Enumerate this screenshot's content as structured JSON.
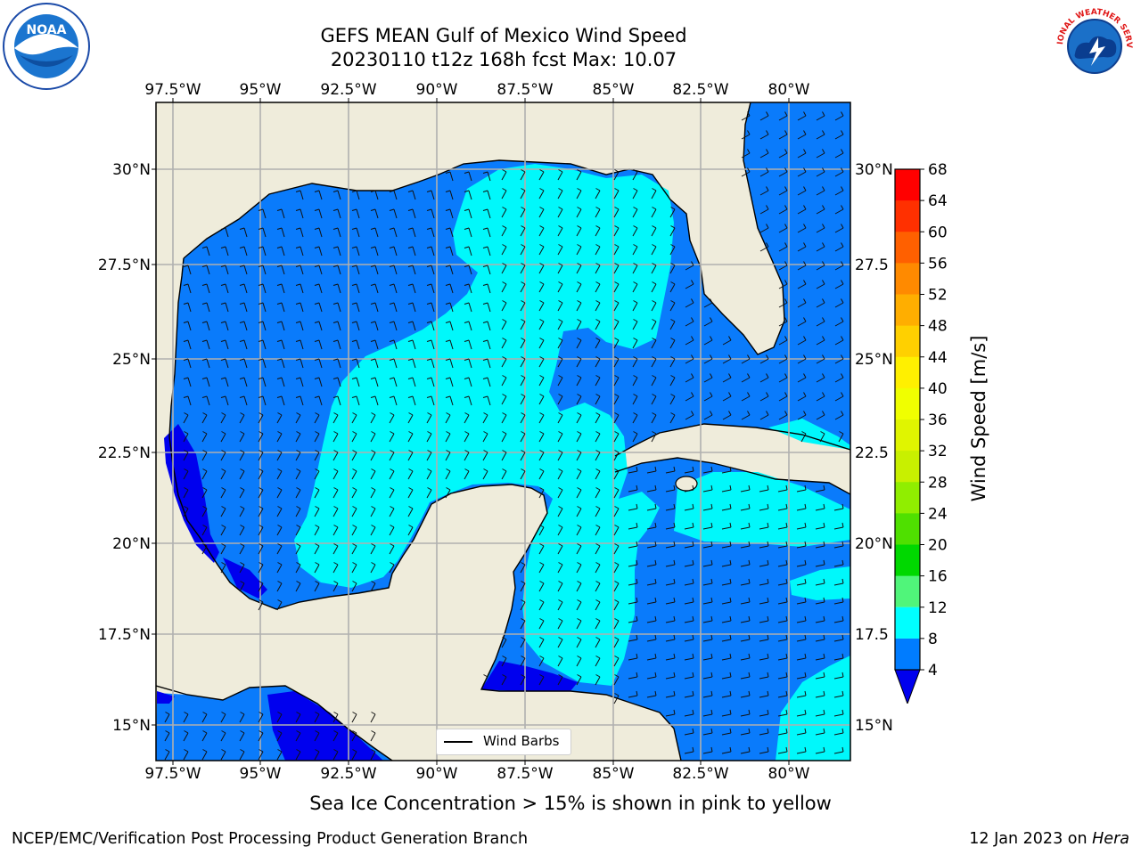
{
  "title_line1": "GEFS MEAN Gulf of Mexico Wind Speed",
  "title_line2": "20230110 t12z 168h fcst   Max: 10.07",
  "lon_labels": [
    "97.5°W",
    "95°W",
    "92.5°W",
    "90°W",
    "87.5°W",
    "85°W",
    "82.5°W",
    "80°W"
  ],
  "lat_labels": [
    "30°N",
    "27.5°N",
    "25°N",
    "22.5°N",
    "20°N",
    "17.5°N",
    "15°N"
  ],
  "lat_labels_right": [
    "30°N",
    "27.5",
    "25°N",
    "22.5",
    "20°N",
    "17.5",
    "15°N"
  ],
  "legend": {
    "wind_barbs_label": "Wind Barbs"
  },
  "colorbar": {
    "label": "Wind Speed [m/s]",
    "ticks": [
      "68",
      "64",
      "60",
      "56",
      "52",
      "48",
      "44",
      "40",
      "36",
      "32",
      "28",
      "24",
      "20",
      "16",
      "12",
      "8",
      "4"
    ],
    "colors_top_to_bottom": [
      "#ff0000",
      "#ff3000",
      "#ff6000",
      "#ff8a00",
      "#ffae00",
      "#ffd000",
      "#fff000",
      "#f0ff00",
      "#e0f500",
      "#c8f000",
      "#90ee00",
      "#4fe000",
      "#00d800",
      "#50f57a",
      "#a0fff8",
      "#50fffa",
      "#00ffff",
      "#007cff"
    ],
    "extend_color": "#0000ee"
  },
  "colors": {
    "land": "#efecdb",
    "wind_4_8": "#0a7bfb",
    "wind_8_12": "#00f8fb",
    "wind_below_4": "#0000ee",
    "grid": "#b0b0b0"
  },
  "note": "Sea Ice Concentration > 15% is shown in pink to yellow",
  "footer_left": "NCEP/EMC/Verification Post Processing Product Generation Branch",
  "footer_right_prefix": "12 Jan 2023 on ",
  "footer_right_host": "Hera",
  "logos": {
    "left_logo_text": "NOAA",
    "right_logo_text": "NATIONAL WEATHER SERVICE"
  }
}
